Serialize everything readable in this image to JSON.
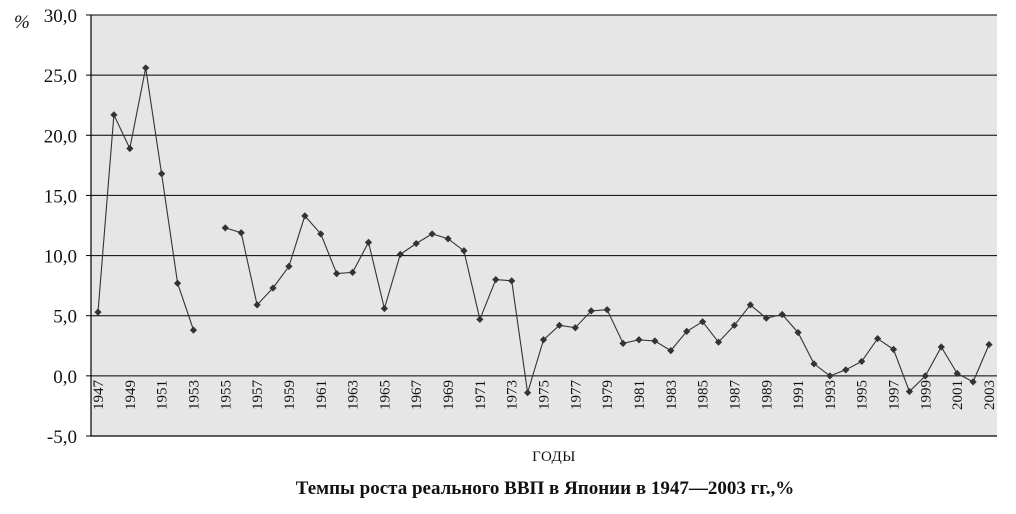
{
  "chart_data": {
    "type": "line",
    "title": "Темпы роста реального ВВП в Японии в 1947—2003 гг.,%",
    "xlabel": "ГОДЫ",
    "ylabel": "%",
    "ylim": [
      -5,
      30
    ],
    "yticks": [
      -5,
      0,
      5,
      10,
      15,
      20,
      25,
      30
    ],
    "ytick_labels": [
      "-5,0",
      "0,0",
      "5,0",
      "10,0",
      "15,0",
      "20,0",
      "25,0",
      "30,0"
    ],
    "xlim": [
      1947,
      2003
    ],
    "xtick_labels": [
      "1947",
      "1949",
      "1951",
      "1953",
      "1955",
      "1957",
      "1959",
      "1961",
      "1963",
      "1965",
      "1967",
      "1969",
      "1971",
      "1973",
      "1975",
      "1977",
      "1979",
      "1981",
      "1983",
      "1985",
      "1987",
      "1989",
      "1991",
      "1993",
      "1995",
      "1997",
      "1999",
      "2001",
      "2003"
    ],
    "grid": true,
    "legend": "none",
    "series": [
      {
        "x": [
          1947,
          1948,
          1949,
          1950,
          1951,
          1952,
          1953,
          1954,
          1955,
          1956,
          1957,
          1958,
          1959,
          1960,
          1961,
          1962,
          1963,
          1964,
          1965,
          1966,
          1967,
          1968,
          1969,
          1970,
          1971,
          1972,
          1973,
          1974,
          1975,
          1976,
          1977,
          1978,
          1979,
          1980,
          1981,
          1982,
          1983,
          1984,
          1985,
          1986,
          1987,
          1988,
          1989,
          1990,
          1991,
          1992,
          1993,
          1994,
          1995,
          1996,
          1997,
          1998,
          1999,
          2000,
          2001,
          2002,
          2003
        ],
        "values": [
          5.3,
          21.7,
          18.9,
          25.6,
          16.8,
          7.7,
          3.8,
          null,
          12.3,
          11.9,
          5.9,
          7.3,
          9.1,
          13.3,
          11.8,
          8.5,
          8.6,
          11.1,
          5.6,
          10.1,
          11.0,
          11.8,
          11.4,
          10.4,
          4.7,
          8.0,
          7.9,
          -1.4,
          3.0,
          4.2,
          4.0,
          5.4,
          5.5,
          2.7,
          3.0,
          2.9,
          2.1,
          3.7,
          4.5,
          2.8,
          4.2,
          5.9,
          4.8,
          5.1,
          3.6,
          1.0,
          0.0,
          0.5,
          1.2,
          3.1,
          2.2,
          -1.3,
          0.0,
          2.4,
          0.2,
          -0.5,
          2.6
        ],
        "color": "#333333"
      }
    ]
  },
  "colors": {
    "plot_background": "#e6e6e6",
    "line": "#333333",
    "gridline": "#000000"
  }
}
